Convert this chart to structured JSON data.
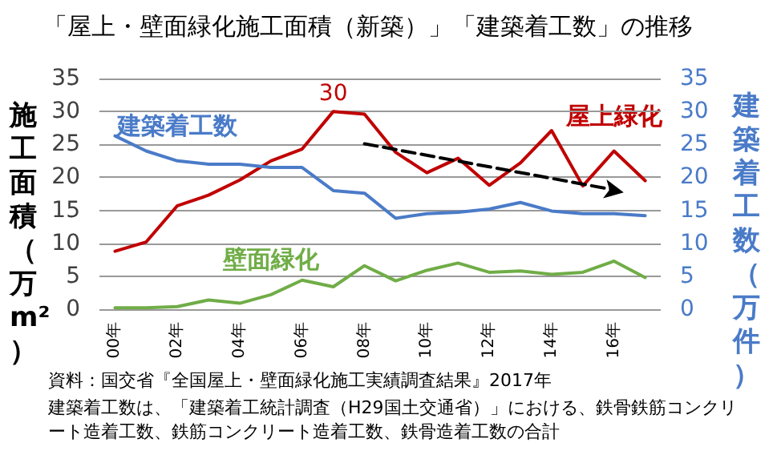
{
  "chart_data": {
    "type": "line",
    "title": "「屋上・壁面緑化施工面積（新築）」「建築着工数」の推移",
    "ylabel": "施工面積（万m²）",
    "y2label": "建築着工数（万件）",
    "categories": [
      "00年",
      null,
      "02年",
      null,
      "04年",
      null,
      "06年",
      null,
      "08年",
      null,
      "10年",
      null,
      "12年",
      null,
      "14年",
      null,
      "16年",
      null
    ],
    "series": [
      {
        "name": "屋上緑化",
        "color": "#c00000",
        "values": [
          8.8,
          10.2,
          15.7,
          17.3,
          19.6,
          22.5,
          24.3,
          30,
          29.6,
          23.8,
          20.7,
          22.9,
          18.8,
          22.2,
          27.1,
          18.7,
          24.0,
          19.5
        ],
        "value_labels": [
          null,
          null,
          null,
          null,
          null,
          null,
          null,
          "30",
          null,
          null,
          null,
          null,
          null,
          null,
          null,
          null,
          null,
          null
        ]
      },
      {
        "name": "建築着工数",
        "color": "#4a7bc8",
        "axis": "y2",
        "values": [
          26.3,
          24.0,
          22.5,
          22.0,
          22.0,
          21.5,
          21.5,
          18.0,
          17.6,
          13.8,
          14.5,
          14.7,
          15.2,
          16.2,
          14.9,
          14.5,
          14.5,
          14.2
        ]
      },
      {
        "name": "壁面緑化",
        "color": "#70ad47",
        "values": [
          0.2,
          0.2,
          0.4,
          1.4,
          0.9,
          2.2,
          4.4,
          3.4,
          6.6,
          4.3,
          5.9,
          7.0,
          5.6,
          5.8,
          5.3,
          5.6,
          7.3,
          4.8
        ]
      },
      {
        "type": "line",
        "color": "#000000",
        "line_style": "dashed",
        "x": [
          "08年",
          "16年"
        ],
        "values": [
          25.1,
          18.1
        ]
      }
    ],
    "ylim": [
      0,
      35
    ],
    "yticks": [
      0,
      5,
      10,
      15,
      20,
      25,
      30,
      35
    ],
    "y2lim": [
      0,
      35
    ],
    "y2ticks": [
      0,
      5,
      10,
      15,
      20,
      25,
      30,
      35
    ],
    "grid": "y",
    "legend": false,
    "line_style": "solid",
    "annotations": [
      "資料：国交省『全国屋上・壁面緑化施工実績調査結果』2017年",
      "建築着工数は、「建築着工統計調査（H29国土交通省）」における、鉄骨鉄筋コンクリート造着工数、鉄筋コンクリート造着工数、鉄骨造着工数の合計"
    ]
  }
}
